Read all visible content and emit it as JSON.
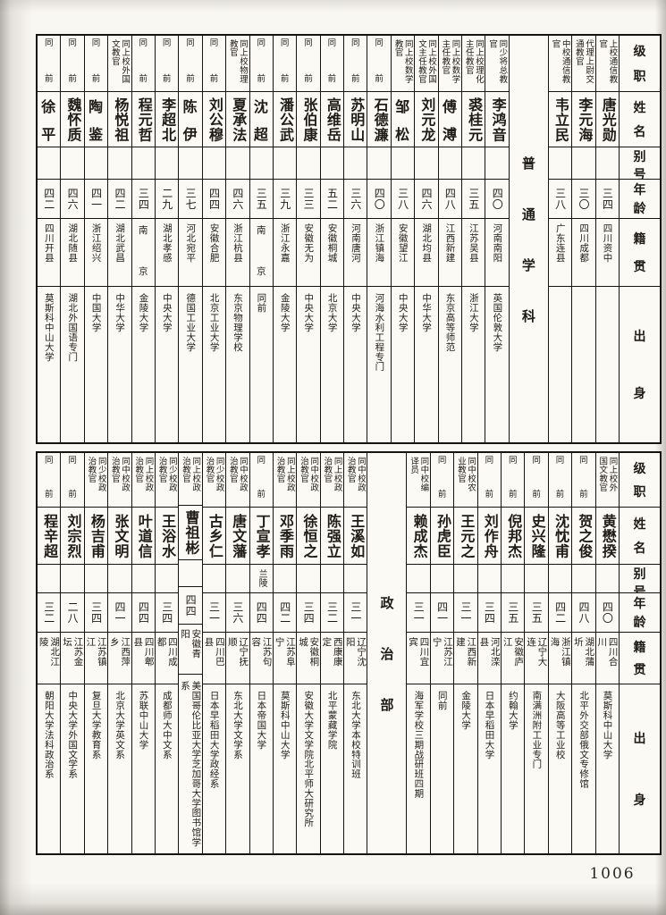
{
  "page_number": "1006",
  "row_headers": [
    "级职",
    "姓名",
    "别号",
    "年龄",
    "籍贯",
    "出身"
  ],
  "sections": [
    {
      "label": "普通学科",
      "label_after": 3,
      "people": [
        {
          "rank": "上校通信教官",
          "name": "唐光勋",
          "alias": "",
          "age": "三四",
          "native": "四川资中",
          "origin": ""
        },
        {
          "rank": "代理上尉交通教官",
          "name": "李元海",
          "alias": "",
          "age": "三〇",
          "native": "四川成都",
          "origin": ""
        },
        {
          "rank": "中校通信教官",
          "name": "韦立民",
          "alias": "",
          "age": "三八",
          "native": "广东连县",
          "origin": ""
        },
        {
          "rank": "同少将总教官",
          "name": "李鸿音",
          "alias": "",
          "age": "四〇",
          "native": "河南南阳",
          "origin": "英国伦敦大学"
        },
        {
          "rank": "同上校理化主任教官",
          "name": "裘桂元",
          "alias": "",
          "age": "三五",
          "native": "江苏吴县",
          "origin": "浙江大学"
        },
        {
          "rank": "同上校数学主任教官",
          "name": "傅溥",
          "alias": "",
          "age": "四八",
          "native": "江西新建",
          "origin": "东京高等师范"
        },
        {
          "rank": "同上校外国文主任教官",
          "name": "刘元龙",
          "alias": "",
          "age": "四六",
          "native": "湖北均县",
          "origin": "中华大学"
        },
        {
          "rank": "同上校数学教官",
          "name": "邹松",
          "alias": "",
          "age": "三八",
          "native": "安徽望江",
          "origin": "中央大学"
        },
        {
          "rank": "同前",
          "name": "石德濂",
          "alias": "",
          "age": "四〇",
          "native": "浙江镇海",
          "origin": "河海水利工程专门"
        },
        {
          "rank": "同前",
          "name": "苏明山",
          "alias": "",
          "age": "三六",
          "native": "河南唐河",
          "origin": "中央大学"
        },
        {
          "rank": "同前",
          "name": "高维岳",
          "alias": "",
          "age": "五二",
          "native": "安徽桐城",
          "origin": "北京大学"
        },
        {
          "rank": "同前",
          "name": "张伯康",
          "alias": "",
          "age": "三三",
          "native": "安徽无为",
          "origin": "中央大学"
        },
        {
          "rank": "同前",
          "name": "潘公武",
          "alias": "",
          "age": "三九",
          "native": "浙江永嘉",
          "origin": "金陵大学"
        },
        {
          "rank": "同前",
          "name": "沈超",
          "alias": "",
          "age": "三五",
          "native": "南京",
          "origin": "同前"
        },
        {
          "rank": "同上校物理教官",
          "name": "夏承法",
          "alias": "",
          "age": "四六",
          "native": "浙江杭县",
          "origin": "东京物理学校"
        },
        {
          "rank": "同前",
          "name": "刘公穆",
          "alias": "",
          "age": "四四",
          "native": "安徽合肥",
          "origin": "北京工业大学"
        },
        {
          "rank": "同前",
          "name": "陈伊",
          "alias": "",
          "age": "三七",
          "native": "河北宛平",
          "origin": "德国工业大学"
        },
        {
          "rank": "同前",
          "name": "李超北",
          "alias": "",
          "age": "二九",
          "native": "湖北孝感",
          "origin": "中央大学"
        },
        {
          "rank": "同前",
          "name": "程元哲",
          "alias": "",
          "age": "三四",
          "native": "南京",
          "origin": "金陵大学"
        },
        {
          "rank": "同上校外国文教官",
          "name": "杨悦祖",
          "alias": "",
          "age": "四二",
          "native": "湖北武昌",
          "origin": "中华大学"
        },
        {
          "rank": "同前",
          "name": "陶鉴",
          "alias": "",
          "age": "四一",
          "native": "浙江绍兴",
          "origin": "中国大学"
        },
        {
          "rank": "同前",
          "name": "魏怀质",
          "alias": "",
          "age": "四六",
          "native": "湖北随县",
          "origin": "湖北外国语专门"
        },
        {
          "rank": "同前",
          "name": "徐平",
          "alias": "",
          "age": "四二",
          "native": "四川开县",
          "origin": "莫斯科中山大学"
        }
      ]
    },
    {
      "label": "政治部",
      "label_after": 9,
      "people": [
        {
          "rank": "同上校外国文教官",
          "name": "黄懋揆",
          "alias": "",
          "age": "四〇",
          "native": "四川合川",
          "origin": "莫斯科中山大学"
        },
        {
          "rank": "同前",
          "name": "贺之俊",
          "alias": "",
          "age": "四八",
          "native": "湖北蒲圻",
          "origin": "北平外交部俄文专修馆"
        },
        {
          "rank": "同前",
          "name": "沈忱甫",
          "alias": "",
          "age": "四二",
          "native": "浙江镇海",
          "origin": "大阪高等工业校"
        },
        {
          "rank": "同前",
          "name": "史兴隆",
          "alias": "",
          "age": "三五",
          "native": "辽宁大连",
          "origin": "南满洲附工业专门"
        },
        {
          "rank": "同前",
          "name": "倪邦杰",
          "alias": "",
          "age": "三五",
          "native": "安徽庐江",
          "origin": "约翰大学"
        },
        {
          "rank": "同前",
          "name": "刘作舟",
          "alias": "",
          "age": "三四",
          "native": "河北滦县",
          "origin": "日本早稻田大学"
        },
        {
          "rank": "同中校农业教官",
          "name": "王元之",
          "alias": "",
          "age": "三一",
          "native": "江西新建",
          "origin": "金陵大学"
        },
        {
          "rank": "同前",
          "name": "孙虎臣",
          "alias": "",
          "age": "四一",
          "native": "江苏江宁",
          "origin": "同前"
        },
        {
          "rank": "同中校编译员",
          "name": "赖成杰",
          "alias": "",
          "age": "三一",
          "native": "四川宜宾",
          "origin": "海军学校三期战研班四期"
        },
        {
          "rank": "同中校政治教官",
          "name": "王溪如",
          "alias": "",
          "age": "三一",
          "native": "辽宁沈阳",
          "origin": "东北大学本校特训班"
        },
        {
          "rank": "同上校政治教官",
          "name": "陈强立",
          "alias": "",
          "age": "三二",
          "native": "西康康定",
          "origin": "北平蒙藏学院"
        },
        {
          "rank": "同中校政治教官",
          "name": "徐恒之",
          "alias": "",
          "age": "三四",
          "native": "安徽桐城",
          "origin": "安徽大学文学院北平师大研究所"
        },
        {
          "rank": "同上校政治教官",
          "name": "邓季雨",
          "alias": "",
          "age": "四二",
          "native": "江苏阜宁",
          "origin": "莫斯科中山大学"
        },
        {
          "rank": "同前",
          "name": "丁宣孝",
          "alias": "兰陵",
          "age": "四四",
          "native": "江苏句容",
          "origin": "日本帝国大学"
        },
        {
          "rank": "同中校政治教官",
          "name": "唐文藩",
          "alias": "",
          "age": "三六",
          "native": "辽宁抚顺",
          "origin": "东北大学文学系"
        },
        {
          "rank": "同少校政治教官",
          "name": "古乡仁",
          "alias": "",
          "age": "三一",
          "native": "四川巴县",
          "origin": "日本早稻田大学政经系"
        },
        {
          "rank": "同上校政治教官",
          "name": "曹祖彬",
          "alias": "",
          "age": "四四",
          "native": "安徽青阳",
          "origin": "美国哥伦比亚大学芝加哥大学图书馆学系"
        },
        {
          "rank": "同少校政治教官",
          "name": "王浴水",
          "alias": "",
          "age": "三四",
          "native": "四川成都",
          "origin": "成都师大中文系"
        },
        {
          "rank": "同上校政治教官",
          "name": "叶道信",
          "alias": "",
          "age": "四四",
          "native": "四川郫县",
          "origin": "苏联中山大学"
        },
        {
          "rank": "同中校政治教官",
          "name": "张文明",
          "alias": "",
          "age": "四一",
          "native": "江西萍乡",
          "origin": "北京大学英文系"
        },
        {
          "rank": "同少校政治教官",
          "name": "杨吉甫",
          "alias": "",
          "age": "三四",
          "native": "江苏镇江",
          "origin": "复旦大学教育系"
        },
        {
          "rank": "同前",
          "name": "刘宗烈",
          "alias": "",
          "age": "二八",
          "native": "江苏金坛",
          "origin": "中央大学外国文学系"
        },
        {
          "rank": "同前",
          "name": "程辛超",
          "alias": "",
          "age": "三二",
          "native": "湖北江陵",
          "origin": "朝阳大学法科政治系"
        }
      ]
    }
  ]
}
